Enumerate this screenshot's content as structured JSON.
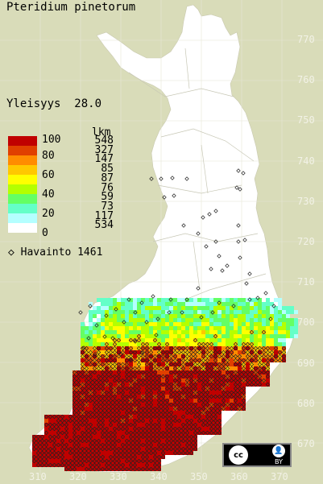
{
  "title": "Pteridium pinetorum",
  "frequency": {
    "label": "Yleisyys",
    "value": "28.0"
  },
  "legend": {
    "count_header": "lkm",
    "levels": [
      {
        "label": "100",
        "count": "548",
        "color": "#c00000"
      },
      {
        "label": "80",
        "count": "327",
        "color": "#e04000"
      },
      {
        "label": "",
        "count": "147",
        "color": "#ff8c00"
      },
      {
        "label": "60",
        "count": "85",
        "color": "#ffc800"
      },
      {
        "label": "",
        "count": "87",
        "color": "#ffff00"
      },
      {
        "label": "40",
        "count": "76",
        "color": "#b4ff00"
      },
      {
        "label": "",
        "count": "59",
        "color": "#64ff64"
      },
      {
        "label": "20",
        "count": "73",
        "color": "#64ffc8"
      },
      {
        "label": "",
        "count": "117",
        "color": "#b4ffff"
      },
      {
        "label": "0",
        "count": "534",
        "color": "#ffffff"
      }
    ]
  },
  "observations": {
    "label": "Havainto",
    "count": "1461",
    "marker": "diamond-icon"
  },
  "axes": {
    "y_ticks": [
      "770",
      "760",
      "750",
      "740",
      "730",
      "720",
      "710",
      "700",
      "690",
      "680",
      "670"
    ],
    "x_ticks": [
      "310",
      "320",
      "330",
      "340",
      "350",
      "360",
      "370"
    ]
  },
  "license": {
    "badge": "cc",
    "by_label": "BY"
  },
  "colors": {
    "background": "#d9dcb9",
    "land": "#ffffff",
    "tick_text": "#f2f2e6"
  }
}
